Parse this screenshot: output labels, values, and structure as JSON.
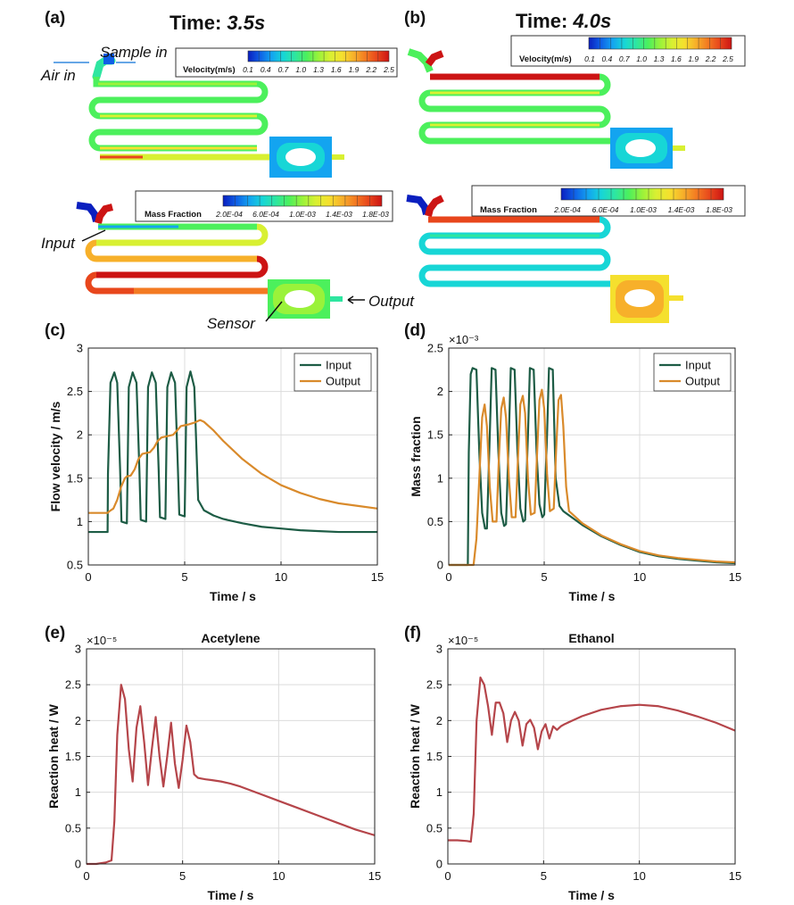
{
  "colors": {
    "input_series": "#1d5c45",
    "output_series": "#d98a2b",
    "heat_series": "#b5454a",
    "grid": "#dcdcdc",
    "axis": "#222222"
  },
  "simulation": {
    "panel_a": {
      "tag": "(a)",
      "title_prefix": "Time: ",
      "title_value": "3.5s",
      "velocity_legend": {
        "title": "Velocity(m/s)",
        "ticks": [
          "0.1",
          "0.4",
          "0.7",
          "1.0",
          "1.3",
          "1.6",
          "1.9",
          "2.2",
          "2.5"
        ]
      },
      "mass_legend": {
        "title": "Mass Fraction",
        "ticks": [
          "2.0E-04",
          "6.0E-04",
          "1.0E-03",
          "1.4E-03",
          "1.8E-03"
        ]
      },
      "annotations": {
        "sample_in": "Sample in",
        "air_in": "Air in",
        "input": "Input",
        "sensor": "Sensor",
        "output": "Output"
      }
    },
    "panel_b": {
      "tag": "(b)",
      "title_prefix": "Time: ",
      "title_value": "4.0s",
      "velocity_legend": {
        "title": "Velocity(m/s)",
        "ticks": [
          "0.1",
          "0.4",
          "0.7",
          "1.0",
          "1.3",
          "1.6",
          "1.9",
          "2.2",
          "2.5"
        ]
      },
      "mass_legend": {
        "title": "Mass Fraction",
        "ticks": [
          "2.0E-04",
          "6.0E-04",
          "1.0E-03",
          "1.4E-03",
          "1.8E-03"
        ]
      }
    },
    "colormap": [
      "#0a1fbf",
      "#0f5fe6",
      "#13a4f0",
      "#17d6d6",
      "#2ee6a0",
      "#4cf05c",
      "#9af23a",
      "#d8f032",
      "#f5e02e",
      "#f7b02a",
      "#f37a22",
      "#e8461c",
      "#cc1414"
    ]
  },
  "chart_data": [
    {
      "id": "c",
      "tag": "(c)",
      "type": "line",
      "title": "",
      "xlabel": "Time / s",
      "ylabel": "Flow velocity / m/s",
      "xlim": [
        0,
        15
      ],
      "ylim": [
        0.5,
        3
      ],
      "xticks": [
        0,
        5,
        10,
        15
      ],
      "yticks": [
        0.5,
        1,
        1.5,
        2,
        2.5,
        3
      ],
      "ytick_labels": [
        "0.5",
        "1",
        "1.5",
        "2",
        "2.5",
        "3"
      ],
      "grid": true,
      "legend_position": "top-right",
      "exponent": "",
      "series": [
        {
          "name": "Input",
          "color": "#1d5c45",
          "x": [
            0,
            1.0,
            1.02,
            1.15,
            1.35,
            1.5,
            1.65,
            1.72,
            2.0,
            2.1,
            2.3,
            2.5,
            2.65,
            2.72,
            3.0,
            3.1,
            3.3,
            3.5,
            3.65,
            3.72,
            4.0,
            4.1,
            4.3,
            4.5,
            4.65,
            4.72,
            5.0,
            5.1,
            5.3,
            5.5,
            5.7,
            6.0,
            6.5,
            7,
            8,
            9,
            10,
            11,
            12,
            13,
            14,
            15
          ],
          "y": [
            0.88,
            0.88,
            1.55,
            2.6,
            2.72,
            2.6,
            1.6,
            1.0,
            0.98,
            2.55,
            2.72,
            2.6,
            1.6,
            1.02,
            1.0,
            2.55,
            2.72,
            2.6,
            1.6,
            1.05,
            1.03,
            2.55,
            2.72,
            2.6,
            1.6,
            1.08,
            1.06,
            2.55,
            2.73,
            2.55,
            1.25,
            1.13,
            1.07,
            1.03,
            0.98,
            0.94,
            0.92,
            0.9,
            0.89,
            0.88,
            0.88,
            0.88
          ]
        },
        {
          "name": "Output",
          "color": "#d98a2b",
          "x": [
            0,
            1.0,
            1.1,
            1.3,
            1.5,
            1.7,
            1.9,
            2.0,
            2.2,
            2.4,
            2.6,
            2.8,
            3.0,
            3.2,
            3.4,
            3.6,
            3.8,
            4.0,
            4.2,
            4.4,
            4.6,
            4.8,
            5.0,
            5.2,
            5.5,
            5.8,
            6.0,
            6.5,
            7,
            8,
            9,
            10,
            11,
            12,
            13,
            14,
            15
          ],
          "y": [
            1.1,
            1.1,
            1.12,
            1.15,
            1.25,
            1.4,
            1.5,
            1.52,
            1.53,
            1.6,
            1.72,
            1.78,
            1.79,
            1.8,
            1.85,
            1.93,
            1.97,
            1.98,
            1.99,
            2.0,
            2.05,
            2.1,
            2.11,
            2.12,
            2.14,
            2.17,
            2.15,
            2.05,
            1.93,
            1.72,
            1.55,
            1.42,
            1.33,
            1.26,
            1.21,
            1.18,
            1.15
          ]
        }
      ]
    },
    {
      "id": "d",
      "tag": "(d)",
      "type": "line",
      "title": "",
      "xlabel": "Time / s",
      "ylabel": "Mass fraction",
      "xlim": [
        0,
        15
      ],
      "ylim": [
        0,
        2.5
      ],
      "xticks": [
        0,
        5,
        10,
        15
      ],
      "yticks": [
        0,
        0.5,
        1,
        1.5,
        2,
        2.5
      ],
      "ytick_labels": [
        "0",
        "0.5",
        "1",
        "1.5",
        "2",
        "2.5"
      ],
      "grid": true,
      "legend_position": "top-right",
      "exponent": "×10⁻³",
      "series": [
        {
          "name": "Input",
          "color": "#1d5c45",
          "x": [
            0,
            1.0,
            1.05,
            1.15,
            1.25,
            1.45,
            1.6,
            1.75,
            1.9,
            2.0,
            2.15,
            2.25,
            2.45,
            2.6,
            2.75,
            2.9,
            3.0,
            3.15,
            3.25,
            3.45,
            3.6,
            3.75,
            3.9,
            4.0,
            4.15,
            4.25,
            4.45,
            4.6,
            4.75,
            4.9,
            5.0,
            5.15,
            5.25,
            5.45,
            5.6,
            5.8,
            6.0,
            6.5,
            7,
            8,
            9,
            10,
            11,
            12,
            13,
            14,
            15
          ],
          "y": [
            0,
            0,
            1.3,
            2.2,
            2.27,
            2.25,
            1.3,
            0.6,
            0.42,
            0.42,
            1.5,
            2.27,
            2.25,
            1.3,
            0.6,
            0.45,
            0.47,
            1.5,
            2.27,
            2.25,
            1.3,
            0.65,
            0.5,
            0.52,
            1.5,
            2.27,
            2.25,
            1.3,
            0.7,
            0.55,
            0.58,
            1.5,
            2.27,
            2.25,
            1.0,
            0.68,
            0.62,
            0.54,
            0.46,
            0.33,
            0.23,
            0.15,
            0.1,
            0.07,
            0.05,
            0.03,
            0.02
          ]
        },
        {
          "name": "Output",
          "color": "#d98a2b",
          "x": [
            0,
            1.3,
            1.45,
            1.6,
            1.75,
            1.88,
            2.0,
            2.15,
            2.3,
            2.5,
            2.62,
            2.75,
            2.88,
            3.0,
            3.15,
            3.3,
            3.5,
            3.62,
            3.75,
            3.88,
            4.0,
            4.15,
            4.3,
            4.5,
            4.62,
            4.75,
            4.88,
            5.0,
            5.15,
            5.3,
            5.5,
            5.62,
            5.75,
            5.88,
            6.0,
            6.15,
            6.3,
            6.5,
            7,
            8,
            9,
            10,
            11,
            12,
            13,
            14,
            15
          ],
          "y": [
            0,
            0,
            0.3,
            1.0,
            1.7,
            1.85,
            1.6,
            0.9,
            0.5,
            0.5,
            1.2,
            1.8,
            1.93,
            1.7,
            1.0,
            0.55,
            0.55,
            1.2,
            1.85,
            1.95,
            1.75,
            1.0,
            0.58,
            0.6,
            1.25,
            1.9,
            2.02,
            1.8,
            1.05,
            0.62,
            0.65,
            1.3,
            1.9,
            1.96,
            1.6,
            0.9,
            0.62,
            0.58,
            0.48,
            0.34,
            0.24,
            0.16,
            0.11,
            0.08,
            0.06,
            0.04,
            0.03
          ]
        }
      ]
    },
    {
      "id": "e",
      "tag": "(e)",
      "type": "line",
      "title": "Acetylene",
      "xlabel": "Time / s",
      "ylabel": "Reaction heat / W",
      "xlim": [
        0,
        15
      ],
      "ylim": [
        0,
        3
      ],
      "xticks": [
        0,
        5,
        10,
        15
      ],
      "yticks": [
        0,
        0.5,
        1,
        1.5,
        2,
        2.5,
        3
      ],
      "ytick_labels": [
        "0",
        "0.5",
        "1",
        "1.5",
        "2",
        "2.5",
        "3"
      ],
      "grid": true,
      "legend_position": "",
      "exponent": "×10⁻⁵",
      "series": [
        {
          "name": "",
          "color": "#b5454a",
          "x": [
            0,
            0.5,
            1.0,
            1.3,
            1.45,
            1.6,
            1.8,
            2.0,
            2.2,
            2.4,
            2.6,
            2.8,
            3.0,
            3.2,
            3.4,
            3.6,
            3.8,
            4.0,
            4.2,
            4.4,
            4.6,
            4.8,
            5.0,
            5.2,
            5.4,
            5.6,
            5.8,
            6.0,
            6.2,
            6.5,
            7,
            7.5,
            8,
            8.5,
            9,
            10,
            11,
            12,
            13,
            14,
            15
          ],
          "y": [
            0,
            0,
            0.02,
            0.05,
            0.6,
            1.8,
            2.5,
            2.3,
            1.6,
            1.15,
            1.9,
            2.2,
            1.7,
            1.1,
            1.6,
            2.05,
            1.5,
            1.08,
            1.5,
            1.97,
            1.4,
            1.06,
            1.45,
            1.93,
            1.7,
            1.25,
            1.2,
            1.19,
            1.18,
            1.17,
            1.15,
            1.12,
            1.08,
            1.03,
            0.98,
            0.88,
            0.78,
            0.68,
            0.58,
            0.48,
            0.4
          ]
        }
      ]
    },
    {
      "id": "f",
      "tag": "(f)",
      "type": "line",
      "title": "Ethanol",
      "xlabel": "Time / s",
      "ylabel": "Reaction heat / W",
      "xlim": [
        0,
        15
      ],
      "ylim": [
        0,
        3
      ],
      "xticks": [
        0,
        5,
        10,
        15
      ],
      "yticks": [
        0,
        0.5,
        1,
        1.5,
        2,
        2.5,
        3
      ],
      "ytick_labels": [
        "0",
        "0.5",
        "1",
        "1.5",
        "2",
        "2.5",
        "3"
      ],
      "grid": true,
      "legend_position": "",
      "exponent": "×10⁻⁵",
      "series": [
        {
          "name": "",
          "color": "#b5454a",
          "x": [
            0,
            0.5,
            1.0,
            1.2,
            1.35,
            1.5,
            1.7,
            1.9,
            2.1,
            2.3,
            2.5,
            2.7,
            2.9,
            3.1,
            3.3,
            3.5,
            3.7,
            3.9,
            4.1,
            4.3,
            4.5,
            4.7,
            4.9,
            5.1,
            5.3,
            5.5,
            5.7,
            5.9,
            6.1,
            6.5,
            7,
            8,
            9,
            10,
            11,
            12,
            13,
            14,
            15
          ],
          "y": [
            0.33,
            0.33,
            0.32,
            0.31,
            0.7,
            2.0,
            2.6,
            2.5,
            2.2,
            1.8,
            2.25,
            2.25,
            2.1,
            1.7,
            2.0,
            2.12,
            2.0,
            1.65,
            1.95,
            2.01,
            1.9,
            1.6,
            1.85,
            1.95,
            1.75,
            1.92,
            1.87,
            1.92,
            1.95,
            2.0,
            2.06,
            2.15,
            2.2,
            2.22,
            2.2,
            2.14,
            2.06,
            1.97,
            1.86
          ]
        }
      ]
    }
  ]
}
